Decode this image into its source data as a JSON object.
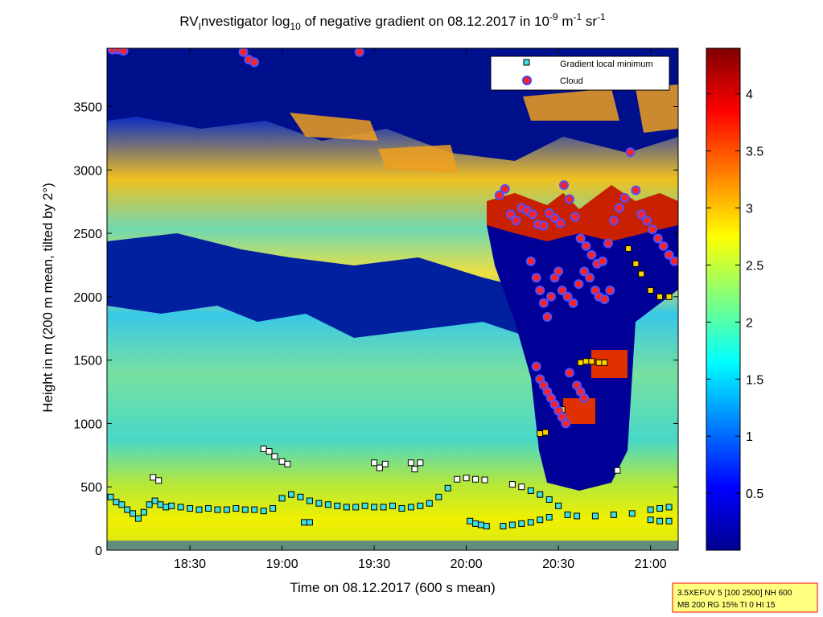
{
  "chart_data": {
    "type": "heatmap",
    "title": {
      "prefix": "RV",
      "prefix_sub": "I",
      "main": "nvestigator log",
      "main_sub": "10",
      "rest": " of negative gradient on 08.12.2017 in 10",
      "exp1": "-9",
      "unit1": " m",
      "exp2": "-1",
      "unit2": " sr",
      "exp3": "-1"
    },
    "xlabel": "Time on 08.12.2017 (600 s mean)",
    "ylabel": "Height in m (200 m mean, tilted by 2°)",
    "xlim": [
      18.05,
      21.15
    ],
    "ylim": [
      0,
      3960
    ],
    "x_ticks": [
      {
        "value": 18.5,
        "label": "18:30"
      },
      {
        "value": 19.0,
        "label": "19:00"
      },
      {
        "value": 19.5,
        "label": "19:30"
      },
      {
        "value": 20.0,
        "label": "20:00"
      },
      {
        "value": 20.5,
        "label": "20:30"
      },
      {
        "value": 21.0,
        "label": "21:00"
      }
    ],
    "y_ticks": [
      0,
      500,
      1000,
      1500,
      2000,
      2500,
      3000,
      3500
    ],
    "colorbar": {
      "range": [
        0,
        4.4
      ],
      "ticks": [
        "0.5",
        "1",
        "1.5",
        "2",
        "2.5",
        "3",
        "3.5",
        "4"
      ],
      "colormap": "jet"
    },
    "legend": {
      "position": "top-right",
      "entries": [
        {
          "label": "Gradient local minimum",
          "marker": "square",
          "color": "#40e0e0"
        },
        {
          "label": "Cloud",
          "marker": "circle",
          "color": "#ff2020"
        }
      ]
    },
    "series": [
      {
        "name": "Gradient local minimum",
        "points": [
          [
            18.07,
            420
          ],
          [
            18.1,
            380
          ],
          [
            18.13,
            360
          ],
          [
            18.16,
            320
          ],
          [
            18.19,
            290
          ],
          [
            18.22,
            250
          ],
          [
            18.25,
            300
          ],
          [
            18.28,
            360
          ],
          [
            18.31,
            390
          ],
          [
            18.34,
            360
          ],
          [
            18.37,
            340
          ],
          [
            18.4,
            350
          ],
          [
            18.45,
            340
          ],
          [
            18.5,
            330
          ],
          [
            18.55,
            320
          ],
          [
            18.6,
            330
          ],
          [
            18.65,
            320
          ],
          [
            18.7,
            320
          ],
          [
            18.75,
            330
          ],
          [
            18.8,
            320
          ],
          [
            18.85,
            320
          ],
          [
            18.9,
            310
          ],
          [
            18.95,
            330
          ],
          [
            19.0,
            410
          ],
          [
            19.05,
            440
          ],
          [
            19.1,
            420
          ],
          [
            19.15,
            390
          ],
          [
            19.2,
            370
          ],
          [
            19.25,
            360
          ],
          [
            19.3,
            350
          ],
          [
            19.35,
            340
          ],
          [
            19.4,
            340
          ],
          [
            19.45,
            350
          ],
          [
            19.5,
            340
          ],
          [
            19.55,
            340
          ],
          [
            19.6,
            350
          ],
          [
            19.65,
            330
          ],
          [
            19.7,
            340
          ],
          [
            19.75,
            350
          ],
          [
            19.8,
            370
          ],
          [
            19.85,
            420
          ],
          [
            19.9,
            490
          ],
          [
            19.95,
            560
          ],
          [
            20.0,
            570
          ],
          [
            20.05,
            560
          ],
          [
            20.1,
            555
          ],
          [
            20.25,
            520
          ],
          [
            20.3,
            500
          ],
          [
            20.35,
            470
          ],
          [
            20.4,
            440
          ],
          [
            20.45,
            400
          ],
          [
            20.5,
            350
          ],
          [
            20.55,
            280
          ],
          [
            20.6,
            270
          ],
          [
            20.7,
            270
          ],
          [
            20.8,
            280
          ],
          [
            20.9,
            290
          ],
          [
            21.0,
            320
          ],
          [
            21.05,
            330
          ],
          [
            21.1,
            340
          ],
          [
            20.2,
            190
          ],
          [
            20.25,
            200
          ],
          [
            20.3,
            210
          ],
          [
            20.35,
            220
          ],
          [
            20.4,
            240
          ],
          [
            20.45,
            260
          ],
          [
            20.02,
            230
          ],
          [
            20.05,
            210
          ],
          [
            20.08,
            200
          ],
          [
            20.11,
            190
          ],
          [
            21.0,
            240
          ],
          [
            21.05,
            230
          ],
          [
            21.1,
            230
          ],
          [
            18.3,
            575
          ],
          [
            18.33,
            550
          ],
          [
            18.9,
            800
          ],
          [
            18.93,
            780
          ],
          [
            18.96,
            740
          ],
          [
            19.0,
            700
          ],
          [
            19.03,
            680
          ],
          [
            19.5,
            690
          ],
          [
            19.53,
            650
          ],
          [
            19.56,
            680
          ],
          [
            19.12,
            220
          ],
          [
            19.15,
            220
          ],
          [
            19.7,
            690
          ],
          [
            19.72,
            640
          ],
          [
            19.75,
            690
          ],
          [
            20.4,
            920
          ],
          [
            20.43,
            930
          ],
          [
            20.5,
            1100
          ],
          [
            20.52,
            1110
          ],
          [
            20.62,
            1480
          ],
          [
            20.65,
            1490
          ],
          [
            20.68,
            1490
          ],
          [
            20.72,
            1480
          ],
          [
            20.75,
            1480
          ],
          [
            20.82,
            630
          ],
          [
            21.0,
            2050
          ],
          [
            21.05,
            2000
          ],
          [
            21.1,
            2000
          ],
          [
            20.95,
            2180
          ],
          [
            20.92,
            2260
          ],
          [
            20.88,
            2380
          ]
        ]
      },
      {
        "name": "Cloud",
        "points": [
          [
            18.08,
            3950
          ],
          [
            18.11,
            3950
          ],
          [
            18.14,
            3940
          ],
          [
            18.79,
            3930
          ],
          [
            18.82,
            3870
          ],
          [
            18.85,
            3850
          ],
          [
            19.42,
            3930
          ],
          [
            20.18,
            2800
          ],
          [
            20.21,
            2850
          ],
          [
            20.24,
            2650
          ],
          [
            20.27,
            2600
          ],
          [
            20.3,
            2700
          ],
          [
            20.33,
            2680
          ],
          [
            20.36,
            2650
          ],
          [
            20.39,
            2570
          ],
          [
            20.42,
            2560
          ],
          [
            20.45,
            2660
          ],
          [
            20.48,
            2620
          ],
          [
            20.51,
            2580
          ],
          [
            20.53,
            2880
          ],
          [
            20.56,
            2770
          ],
          [
            20.59,
            2630
          ],
          [
            20.62,
            2460
          ],
          [
            20.65,
            2400
          ],
          [
            20.68,
            2330
          ],
          [
            20.71,
            2260
          ],
          [
            20.74,
            2280
          ],
          [
            20.77,
            2420
          ],
          [
            20.8,
            2600
          ],
          [
            20.83,
            2700
          ],
          [
            20.86,
            2780
          ],
          [
            20.89,
            3140
          ],
          [
            20.92,
            2840
          ],
          [
            20.95,
            2650
          ],
          [
            20.98,
            2600
          ],
          [
            21.01,
            2530
          ],
          [
            21.04,
            2460
          ],
          [
            21.07,
            2400
          ],
          [
            21.1,
            2330
          ],
          [
            21.13,
            2280
          ],
          [
            20.35,
            2280
          ],
          [
            20.38,
            2150
          ],
          [
            20.4,
            2050
          ],
          [
            20.42,
            1950
          ],
          [
            20.44,
            1840
          ],
          [
            20.46,
            2000
          ],
          [
            20.48,
            2150
          ],
          [
            20.5,
            2200
          ],
          [
            20.52,
            2050
          ],
          [
            20.55,
            2000
          ],
          [
            20.58,
            1950
          ],
          [
            20.61,
            2100
          ],
          [
            20.64,
            2200
          ],
          [
            20.67,
            2150
          ],
          [
            20.7,
            2050
          ],
          [
            20.72,
            2000
          ],
          [
            20.75,
            1980
          ],
          [
            20.78,
            2050
          ],
          [
            20.38,
            1450
          ],
          [
            20.4,
            1350
          ],
          [
            20.42,
            1300
          ],
          [
            20.44,
            1250
          ],
          [
            20.46,
            1200
          ],
          [
            20.48,
            1150
          ],
          [
            20.5,
            1100
          ],
          [
            20.52,
            1050
          ],
          [
            20.54,
            1000
          ],
          [
            20.56,
            1400
          ],
          [
            20.6,
            1300
          ],
          [
            20.62,
            1250
          ],
          [
            20.64,
            1200
          ]
        ]
      }
    ],
    "info_box": {
      "line1": "3.5XEFUV 5 [100 2500] NH 600",
      "line2": "MB 200 RG 15% TI 0 HI 15"
    }
  }
}
